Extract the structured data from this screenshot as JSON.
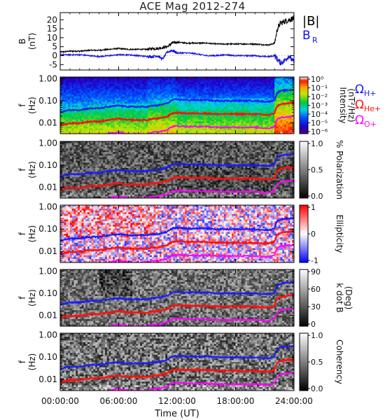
{
  "title": "ACE Mag 2012-274",
  "colors": {
    "b_total": "#000000",
    "b_r": "#1010e0",
    "h_plus": "#1a1aff",
    "he_plus": "#ff1010",
    "o_plus": "#ff00ff"
  },
  "chart_data": [
    {
      "type": "line",
      "panel": "magnetic-field",
      "ylabel": "B",
      "yunit": "(nT)",
      "yticks": [
        "20",
        "15",
        "10",
        "5",
        "0",
        "-5"
      ],
      "ylim": [
        -8,
        24
      ],
      "xlim": [
        0,
        24
      ],
      "legend": [
        "|B|",
        "B_R"
      ],
      "legend_placement": "right",
      "series": [
        {
          "name": "|B|",
          "x": [
            0,
            1,
            2,
            3,
            4,
            5,
            6,
            7,
            8,
            9,
            9.5,
            10,
            10.5,
            11,
            11.5,
            12,
            13,
            14,
            15,
            16,
            17,
            18,
            19,
            20,
            21,
            21.5,
            22,
            22.3,
            22.6,
            23,
            23.5,
            24
          ],
          "values": [
            2,
            2.5,
            2.5,
            3,
            3,
            3.5,
            4,
            3.5,
            3.5,
            3.5,
            4,
            4,
            4.5,
            5,
            7,
            7.5,
            7,
            7,
            7,
            6.5,
            6.5,
            6.5,
            6.5,
            6.5,
            6,
            6,
            7,
            15,
            18,
            19,
            20,
            21
          ]
        },
        {
          "name": "B_R",
          "x": [
            0,
            1,
            2,
            3,
            4,
            5,
            6,
            7,
            8,
            9,
            9.5,
            10,
            10.5,
            11,
            11.5,
            12,
            13,
            14,
            15,
            16,
            17,
            18,
            19,
            20,
            21,
            21.5,
            22,
            22.3,
            22.6,
            23,
            23.5,
            24
          ],
          "values": [
            0.5,
            0.5,
            0.5,
            0,
            -0.5,
            0,
            0.5,
            0.5,
            0,
            -0.5,
            -0.5,
            0,
            -2,
            2,
            3,
            1.5,
            1.5,
            1,
            0,
            0,
            0.5,
            0,
            0,
            0,
            -0.5,
            -0.5,
            0,
            -2,
            -4,
            -3,
            0,
            -4
          ]
        }
      ]
    },
    {
      "type": "heatmap",
      "panel": "intensity",
      "ylabel": "f",
      "yunit": "(Hz)",
      "yticks": [
        "1.00",
        "0.10",
        "0.01"
      ],
      "colorbar_label": "Intensity",
      "colorbar_unit": "(nT²/Hz)",
      "colorbar_ticks": [
        "10⁰",
        "10⁻¹",
        "10⁻²",
        "10⁻³",
        "10⁻⁴",
        "10⁻⁵",
        "10⁻⁶"
      ],
      "legend": [
        "Ω_H+",
        "Ω_He+",
        "Ω_O+"
      ],
      "legend_placement": "right"
    },
    {
      "type": "heatmap",
      "panel": "polarization",
      "ylabel": "f",
      "yunit": "(Hz)",
      "yticks": [
        "1.00",
        "0.10",
        "0.01"
      ],
      "colorbar_label": "% Polarization",
      "colorbar_ticks": [
        "1.0",
        "0.5",
        "0.0"
      ]
    },
    {
      "type": "heatmap",
      "panel": "ellipticity",
      "ylabel": "f",
      "yunit": "(Hz)",
      "yticks": [
        "1.00",
        "0.10",
        "0.01"
      ],
      "colorbar_label": "Ellipticity",
      "colorbar_ticks": [
        "1",
        "0",
        "-1"
      ]
    },
    {
      "type": "heatmap",
      "panel": "wave-normal-angle",
      "ylabel": "f",
      "yunit": "(Hz)",
      "yticks": [
        "1.00",
        "0.10",
        "0.01"
      ],
      "colorbar_label": "k dot B",
      "colorbar_unit": "(Deg)",
      "colorbar_ticks": [
        "90",
        "60",
        "30",
        "0"
      ]
    },
    {
      "type": "heatmap",
      "panel": "coherency",
      "ylabel": "f",
      "yunit": "(Hz)",
      "yticks": [
        "1.00",
        "0.10",
        "0.01"
      ],
      "colorbar_label": "Coherency",
      "colorbar_ticks": [
        "1.0",
        "0.5",
        "0.0"
      ]
    }
  ],
  "gyrofrequency_lines": {
    "x": [
      0,
      1,
      2,
      3,
      4,
      5,
      6,
      7,
      8,
      9,
      9.5,
      10,
      10.5,
      11,
      11.5,
      12,
      13,
      14,
      15,
      16,
      17,
      18,
      19,
      20,
      21,
      21.5,
      22,
      22.3,
      22.6,
      23,
      23.5,
      24
    ],
    "H+": [
      0.03,
      0.038,
      0.038,
      0.045,
      0.045,
      0.053,
      0.06,
      0.053,
      0.053,
      0.053,
      0.06,
      0.06,
      0.068,
      0.076,
      0.107,
      0.114,
      0.107,
      0.107,
      0.107,
      0.099,
      0.099,
      0.099,
      0.099,
      0.099,
      0.091,
      0.091,
      0.107,
      0.23,
      0.27,
      0.29,
      0.3,
      0.32
    ],
    "He+": [
      0.0076,
      0.0095,
      0.0095,
      0.0114,
      0.0114,
      0.0133,
      0.0152,
      0.0133,
      0.0133,
      0.0133,
      0.0152,
      0.0152,
      0.0171,
      0.019,
      0.0267,
      0.0285,
      0.0267,
      0.0267,
      0.0267,
      0.0247,
      0.0247,
      0.0247,
      0.0247,
      0.0247,
      0.0228,
      0.0228,
      0.0267,
      0.057,
      0.068,
      0.072,
      0.076,
      0.08
    ],
    "O+": [
      0.0019,
      0.0024,
      0.0024,
      0.0028,
      0.0028,
      0.0033,
      0.0038,
      0.0033,
      0.0033,
      0.0033,
      0.0038,
      0.0038,
      0.0043,
      0.0048,
      0.0067,
      0.0071,
      0.0067,
      0.0067,
      0.0067,
      0.0062,
      0.0062,
      0.0062,
      0.0062,
      0.0062,
      0.0057,
      0.0057,
      0.0067,
      0.0143,
      0.017,
      0.018,
      0.019,
      0.02
    ]
  },
  "x_axis": {
    "label": "Time (UT)",
    "ticks": [
      {
        "value": 0,
        "label": "00:00:00"
      },
      {
        "value": 6,
        "label": "06:00:00"
      },
      {
        "value": 12,
        "label": "12:00:00"
      },
      {
        "value": 18,
        "label": "18:00:00"
      },
      {
        "value": 24,
        "label": "24:00:00"
      }
    ]
  }
}
